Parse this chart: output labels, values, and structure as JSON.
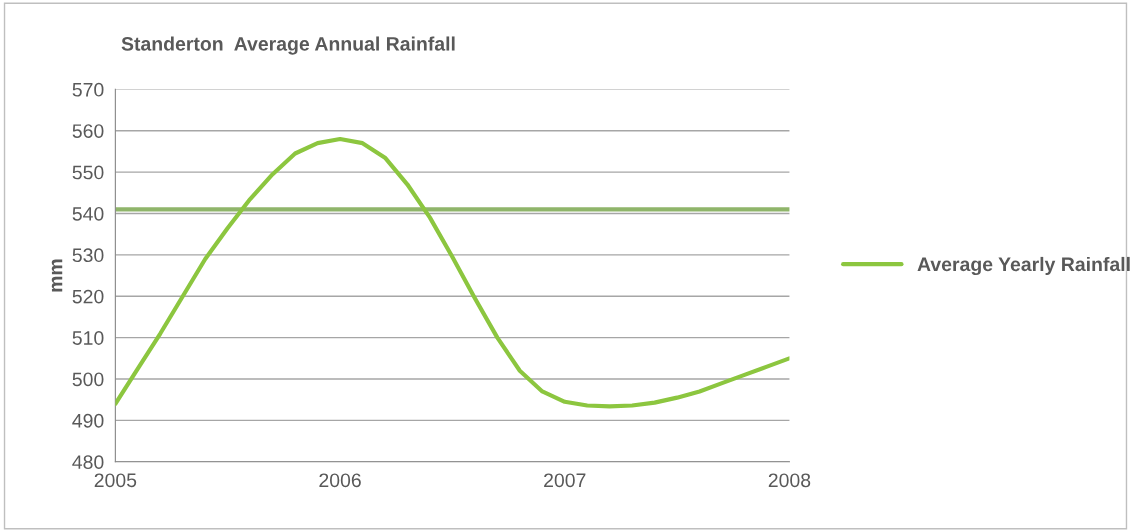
{
  "chart_data": {
    "type": "line",
    "title": "Standerton  Average Annual Rainfall",
    "ylabel": "mm",
    "x": [
      2005.0,
      2005.1,
      2005.2,
      2005.3,
      2005.4,
      2005.5,
      2005.6,
      2005.7,
      2005.8,
      2005.9,
      2006.0,
      2006.1,
      2006.2,
      2006.3,
      2006.4,
      2006.5,
      2006.6,
      2006.7,
      2006.8,
      2006.9,
      2007.0,
      2007.1,
      2007.2,
      2007.3,
      2007.4,
      2007.5,
      2007.6,
      2007.7,
      2007.8,
      2007.9,
      2008.0
    ],
    "series": [
      {
        "name": "Average Yearly Rainfall",
        "color": "#8cc63f",
        "values": [
          494,
          502.5,
          511,
          520,
          529,
          536.5,
          543.5,
          549.5,
          554.5,
          557,
          558,
          557,
          553.5,
          547,
          539,
          529.5,
          519.5,
          510,
          502,
          497,
          494.5,
          493.6,
          493.4,
          493.6,
          494.3,
          495.5,
          497,
          499,
          501,
          503,
          505
        ]
      }
    ],
    "xlim": [
      2005,
      2008
    ],
    "xticks": [
      2005,
      2006,
      2007,
      2008
    ],
    "ylim": [
      480,
      570
    ],
    "yticks": [
      480,
      490,
      500,
      510,
      520,
      530,
      540,
      550,
      560,
      570
    ],
    "ref_lines": [
      {
        "axis": "y",
        "value": 541,
        "color": "#8fb56a"
      }
    ],
    "grid": "y",
    "legend": "right",
    "marker": "none",
    "line_style": "solid"
  }
}
